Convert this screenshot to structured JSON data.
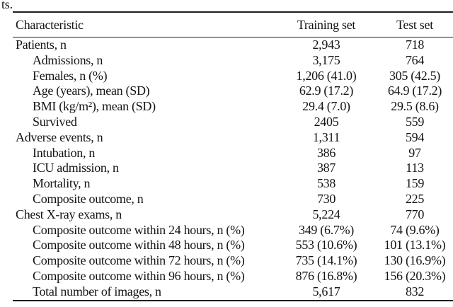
{
  "caption_fragment": "ts.",
  "table": {
    "columns": [
      "Characteristic",
      "Training set",
      "Test set"
    ],
    "rows": [
      {
        "label": "Patients, n",
        "indent": 0,
        "training": "2,943",
        "test": "718"
      },
      {
        "label": "Admissions, n",
        "indent": 1,
        "training": "3,175",
        "test": "764"
      },
      {
        "label": "Females, n (%)",
        "indent": 1,
        "training": "1,206 (41.0)",
        "test": "305 (42.5)"
      },
      {
        "label": "Age (years), mean (SD)",
        "indent": 1,
        "training": "62.9 (17.2)",
        "test": "64.9 (17.2)"
      },
      {
        "label": "BMI (kg/m²), mean (SD)",
        "indent": 1,
        "training": "29.4 (7.0)",
        "test": "29.5 (8.6)"
      },
      {
        "label": "Survived",
        "indent": 1,
        "training": "2405",
        "test": "559"
      },
      {
        "label": "Adverse events, n",
        "indent": 0,
        "training": "1,311",
        "test": "594"
      },
      {
        "label": "Intubation, n",
        "indent": 1,
        "training": "386",
        "test": "97"
      },
      {
        "label": "ICU admission, n",
        "indent": 1,
        "training": "387",
        "test": "113"
      },
      {
        "label": "Mortality, n",
        "indent": 1,
        "training": "538",
        "test": "159"
      },
      {
        "label": "Composite outcome, n",
        "indent": 1,
        "training": "730",
        "test": "225"
      },
      {
        "label": "Chest X-ray exams, n",
        "indent": 0,
        "training": "5,224",
        "test": "770"
      },
      {
        "label": "Composite outcome within 24 hours, n (%)",
        "indent": 1,
        "training": "349 (6.7%)",
        "test": "74 (9.6%)"
      },
      {
        "label": "Composite outcome within 48 hours, n (%)",
        "indent": 1,
        "training": "553 (10.6%)",
        "test": "101 (13.1%)"
      },
      {
        "label": "Composite outcome within 72 hours, n (%)",
        "indent": 1,
        "training": "735 (14.1%)",
        "test": "130 (16.9%)"
      },
      {
        "label": "Composite outcome within 96 hours, n (%)",
        "indent": 1,
        "training": "876 (16.8%)",
        "test": "156 (20.3%)"
      },
      {
        "label": "Total number of images, n",
        "indent": 1,
        "training": "5,617",
        "test": "832"
      }
    ]
  },
  "colors": {
    "background": "#ffffff",
    "text": "#141414",
    "rule": "#1e1e1e"
  }
}
